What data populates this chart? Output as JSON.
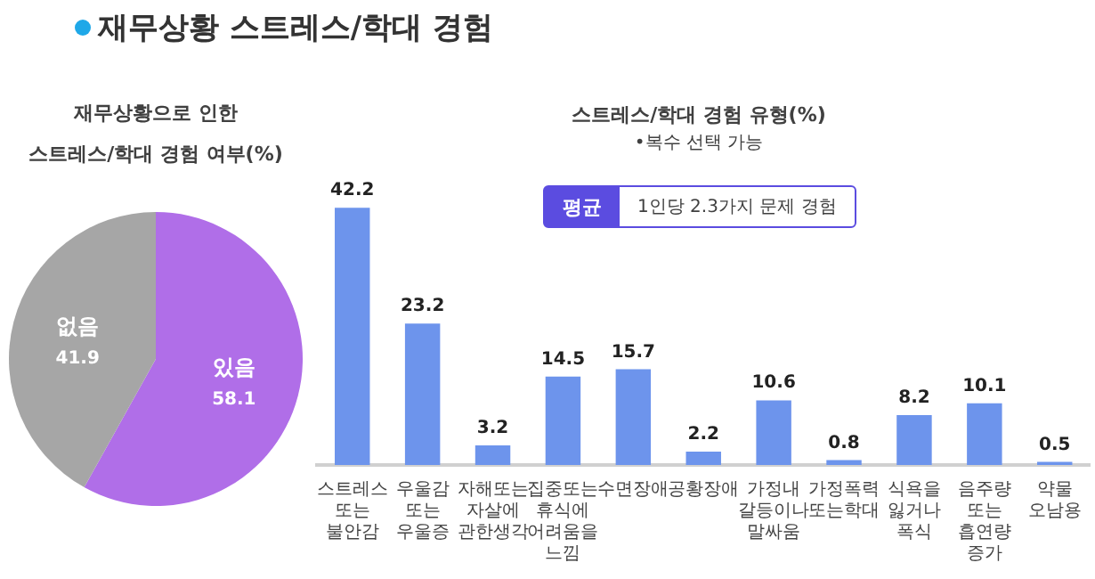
{
  "chart_data": [
    {
      "type": "pie",
      "title": "재무상황 스트레스/학대 경험",
      "subtitle": "재무상황으로 인한\n스트레스/학대 경험 여부(%)",
      "categories": [
        "있음",
        "없음"
      ],
      "values": [
        58.1,
        41.9
      ],
      "colors": [
        "#b06ee8",
        "#a6a6a6"
      ],
      "data_labels": true,
      "legend": false
    },
    {
      "type": "bar",
      "title": "스트레스/학대 경험 유형(%)",
      "subtitle": "•복수 선택 가능",
      "annotations": [
        "평균",
        "1인당 2.3가지 문제 경험"
      ],
      "categories": [
        "스트레스 또는 불안감",
        "우울감 또는 우울증",
        "자해또는 자살에 관한생각",
        "집중또는 휴식에 어려움을 느낌",
        "수면장애",
        "공황장애",
        "가정내 갈등이나 말싸움",
        "가정폭력 또는학대",
        "식욕을 잃거나 폭식",
        "음주량 또는 흡연량 증가",
        "약물 오남용"
      ],
      "values": [
        42.2,
        23.2,
        3.2,
        14.5,
        15.7,
        2.2,
        10.6,
        0.8,
        8.2,
        10.1,
        0.5
      ],
      "color": "#6d94ec",
      "data_labels": true,
      "grid": false,
      "legend": false
    }
  ]
}
